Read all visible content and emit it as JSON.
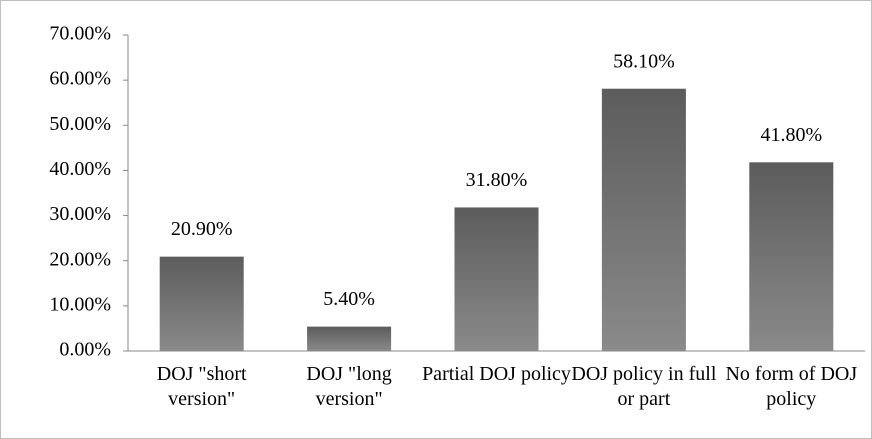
{
  "chart_data": {
    "type": "bar",
    "categories": [
      "DOJ \"short version\"",
      "DOJ \"long version\"",
      "Partial DOJ policy",
      "DOJ policy in full or part",
      "No form of DOJ policy"
    ],
    "values": [
      20.9,
      5.4,
      31.8,
      58.1,
      41.8
    ],
    "value_labels": [
      "20.90%",
      "5.40%",
      "31.80%",
      "58.10%",
      "41.80%"
    ],
    "color": "#6e6e6e",
    "ylim": [
      0,
      70
    ],
    "yticks": [
      {
        "value": 0,
        "label": "0.00%"
      },
      {
        "value": 10,
        "label": "10.00%"
      },
      {
        "value": 20,
        "label": "20.00%"
      },
      {
        "value": 30,
        "label": "30.00%"
      },
      {
        "value": 40,
        "label": "40.00%"
      },
      {
        "value": 50,
        "label": "50.00%"
      },
      {
        "value": 60,
        "label": "60.00%"
      },
      {
        "value": 70,
        "label": "70.00%"
      }
    ],
    "grid": false
  }
}
